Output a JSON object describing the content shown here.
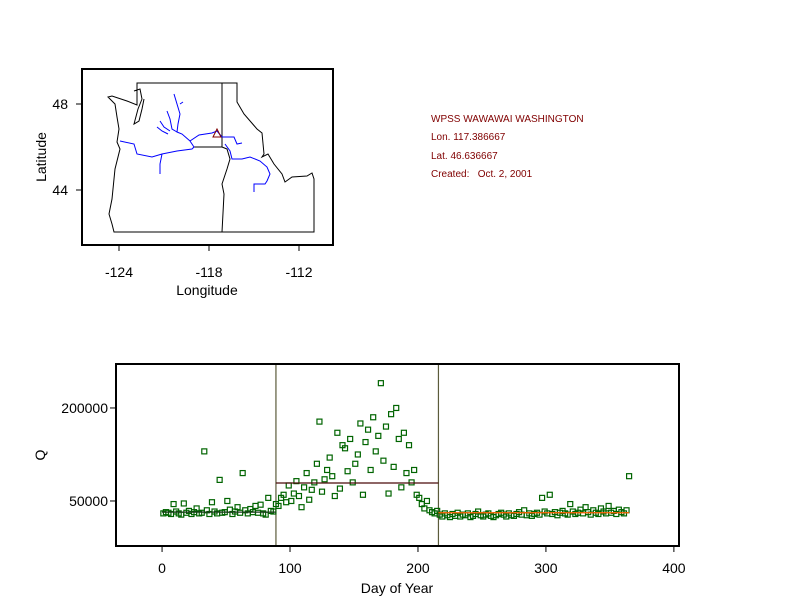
{
  "info": {
    "site": "WPSS WAWAWAI WASHINGTON",
    "lon": "Lon. 117.386667",
    "lat": "Lat. 46.636667",
    "created": "Created:   Oct. 2, 2001"
  },
  "map": {
    "xlabel": "Longitude",
    "ylabel": "Latitude",
    "xticks": [
      "-124",
      "-118",
      "-112"
    ],
    "yticks": [
      "48",
      "44"
    ],
    "colors": {
      "outline": "#000000",
      "rivers": "#0000ff",
      "site_marker": "#800000"
    }
  },
  "chart_data": {
    "type": "scatter",
    "title": "",
    "xlabel": "Day of Year",
    "ylabel": "Q",
    "xticks": [
      "0",
      "100",
      "200",
      "300",
      "400"
    ],
    "yticks": [
      "200000",
      "50000"
    ],
    "ytick_values": [
      200000,
      50000
    ],
    "xtick_values": [
      0,
      100,
      200,
      300,
      400
    ],
    "xlim": [
      -36,
      404
    ],
    "ylim": [
      -22600,
      270900
    ],
    "grid": false,
    "days_start": 1,
    "days_step": 2,
    "Q_thousands": [
      30,
      32,
      31,
      29,
      45,
      33,
      30,
      28,
      46,
      31,
      34,
      29,
      32,
      38,
      30,
      31,
      130,
      35,
      29,
      48,
      33,
      30,
      84,
      31,
      32,
      50,
      36,
      29,
      33,
      40,
      31,
      95,
      35,
      30,
      37,
      32,
      42,
      31,
      44,
      30,
      28,
      55,
      34,
      33,
      45,
      42,
      55,
      60,
      48,
      75,
      50,
      62,
      82,
      58,
      40,
      72,
      95,
      52,
      68,
      80,
      110,
      178,
      65,
      85,
      100,
      120,
      90,
      58,
      160,
      70,
      140,
      135,
      98,
      150,
      80,
      110,
      125,
      175,
      60,
      145,
      165,
      100,
      185,
      130,
      155,
      240,
      115,
      170,
      62,
      190,
      105,
      200,
      150,
      72,
      160,
      95,
      140,
      80,
      100,
      60,
      55,
      45,
      38,
      50,
      35,
      32,
      30,
      34,
      28,
      25,
      30,
      27,
      24,
      29,
      26,
      31,
      25,
      28,
      27,
      30,
      24,
      26,
      29,
      33,
      27,
      25,
      28,
      30,
      26,
      24,
      27,
      29,
      31,
      28,
      25,
      30,
      27,
      26,
      29,
      32,
      28,
      35,
      27,
      30,
      26,
      29,
      31,
      28,
      55,
      33,
      30,
      60,
      29,
      32,
      27,
      31,
      34,
      30,
      28,
      45,
      33,
      29,
      31,
      36,
      30,
      40,
      32,
      28,
      35,
      31,
      29,
      38,
      33,
      30,
      42,
      31,
      34,
      29,
      36,
      32,
      30,
      35,
      90
    ],
    "period_breaks": [
      89,
      216
    ],
    "period_means": [
      {
        "from": 0,
        "to": 89,
        "Q": 32000,
        "color": "#1a3a1a"
      },
      {
        "from": 89,
        "to": 216,
        "Q": 79000,
        "color": "#4a0a0a"
      },
      {
        "from": 216,
        "to": 365,
        "Q": 31000,
        "color": "#ff6000"
      }
    ],
    "colors": {
      "marker": "#006400",
      "breaks": "#5b5b3b"
    }
  }
}
